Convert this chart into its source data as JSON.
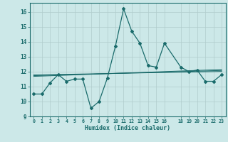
{
  "xlabel": "Humidex (Indice chaleur)",
  "bg_color": "#cce8e8",
  "grid_color": "#b0cccc",
  "line_color": "#1a6b6b",
  "xlim": [
    -0.5,
    23.5
  ],
  "ylim": [
    9,
    16.6
  ],
  "xticks": [
    0,
    1,
    2,
    3,
    4,
    5,
    6,
    7,
    8,
    9,
    10,
    11,
    12,
    13,
    14,
    15,
    16,
    18,
    19,
    20,
    21,
    22,
    23
  ],
  "yticks": [
    9,
    10,
    11,
    12,
    13,
    14,
    15,
    16
  ],
  "x": [
    0,
    1,
    2,
    3,
    4,
    5,
    6,
    7,
    8,
    9,
    10,
    11,
    12,
    13,
    14,
    15,
    16,
    18,
    19,
    20,
    21,
    22,
    23
  ],
  "y_main": [
    10.5,
    10.5,
    11.25,
    11.8,
    11.35,
    11.5,
    11.5,
    9.55,
    10.0,
    11.55,
    13.7,
    16.2,
    14.7,
    13.9,
    12.4,
    12.3,
    13.9,
    12.3,
    12.0,
    12.1,
    11.35,
    11.35,
    11.8
  ],
  "y_reg1": [
    11.78,
    11.79,
    11.8,
    11.81,
    11.82,
    11.83,
    11.84,
    11.85,
    11.86,
    11.87,
    11.88,
    11.89,
    11.9,
    11.91,
    11.92,
    11.93,
    11.94,
    11.96,
    11.97,
    11.98,
    11.99,
    12.0,
    12.01
  ],
  "y_reg2": [
    11.73,
    11.74,
    11.76,
    11.77,
    11.79,
    11.8,
    11.82,
    11.83,
    11.85,
    11.86,
    11.88,
    11.89,
    11.91,
    11.92,
    11.94,
    11.95,
    11.97,
    12.0,
    12.01,
    12.03,
    12.04,
    12.06,
    12.07
  ],
  "y_reg3": [
    11.68,
    11.7,
    11.72,
    11.74,
    11.76,
    11.78,
    11.8,
    11.82,
    11.84,
    11.86,
    11.88,
    11.9,
    11.92,
    11.94,
    11.96,
    11.98,
    12.0,
    12.04,
    12.06,
    12.08,
    12.1,
    12.12,
    12.14
  ]
}
